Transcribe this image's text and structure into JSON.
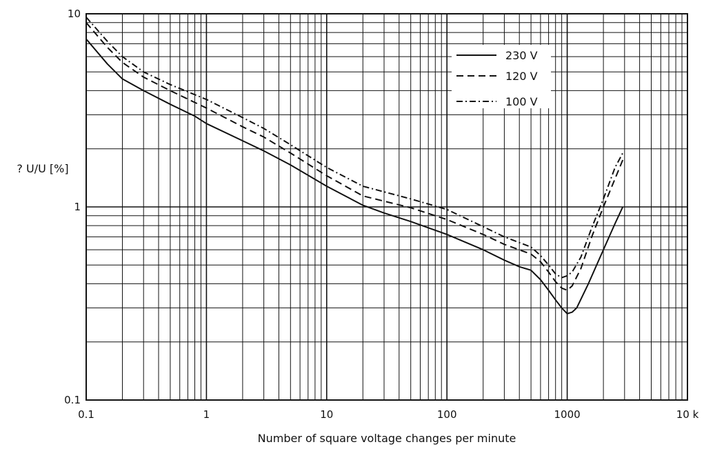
{
  "chart_data": {
    "type": "line",
    "title": "",
    "xlabel": "Number of square voltage changes per minute",
    "ylabel": "? U/U [%]",
    "x_scale": "log",
    "y_scale": "log",
    "xlim": [
      0.1,
      10000
    ],
    "ylim": [
      0.1,
      10
    ],
    "grid": true,
    "legend_position": "top-right",
    "x_ticks": [
      {
        "value": 0.1,
        "label": "0.1"
      },
      {
        "value": 1,
        "label": "1"
      },
      {
        "value": 10,
        "label": "10"
      },
      {
        "value": 100,
        "label": "100"
      },
      {
        "value": 1000,
        "label": "1000"
      },
      {
        "value": 10000,
        "label": "10 k"
      }
    ],
    "y_ticks": [
      {
        "value": 0.1,
        "label": "0.1"
      },
      {
        "value": 1,
        "label": "1"
      },
      {
        "value": 10,
        "label": "10"
      }
    ],
    "series": [
      {
        "name": "230 V",
        "dash": "solid",
        "x": [
          0.1,
          0.15,
          0.2,
          0.3,
          0.5,
          0.8,
          1,
          2,
          3,
          5,
          10,
          20,
          30,
          50,
          100,
          200,
          300,
          400,
          500,
          600,
          700,
          800,
          900,
          1000,
          1100,
          1200,
          1500,
          2000,
          2500,
          2900
        ],
        "y": [
          7.4,
          5.5,
          4.6,
          4.0,
          3.4,
          2.95,
          2.7,
          2.2,
          1.95,
          1.65,
          1.28,
          1.02,
          0.93,
          0.84,
          0.72,
          0.6,
          0.53,
          0.49,
          0.47,
          0.42,
          0.37,
          0.33,
          0.3,
          0.28,
          0.285,
          0.3,
          0.4,
          0.6,
          0.82,
          1.0
        ]
      },
      {
        "name": "120 V",
        "dash": "dashed",
        "x": [
          0.1,
          0.15,
          0.2,
          0.3,
          0.5,
          1,
          2,
          3,
          5,
          10,
          20,
          50,
          100,
          200,
          300,
          500,
          600,
          700,
          800,
          900,
          1000,
          1100,
          1300,
          1600,
          2000,
          2500,
          2900
        ],
        "y": [
          9.0,
          6.7,
          5.6,
          4.7,
          4.0,
          3.25,
          2.6,
          2.3,
          1.9,
          1.45,
          1.14,
          0.99,
          0.86,
          0.72,
          0.64,
          0.57,
          0.52,
          0.46,
          0.41,
          0.38,
          0.37,
          0.39,
          0.48,
          0.7,
          1.0,
          1.4,
          1.75
        ]
      },
      {
        "name": "100 V",
        "dash": "dashdot",
        "x": [
          0.1,
          0.15,
          0.2,
          0.3,
          0.5,
          1,
          2,
          3,
          5,
          10,
          20,
          50,
          100,
          200,
          300,
          500,
          600,
          700,
          800,
          900,
          1000,
          1100,
          1300,
          1600,
          2000,
          2500,
          2900
        ],
        "y": [
          9.6,
          7.2,
          6.0,
          5.0,
          4.3,
          3.6,
          2.9,
          2.55,
          2.1,
          1.6,
          1.28,
          1.1,
          0.97,
          0.79,
          0.7,
          0.62,
          0.56,
          0.5,
          0.45,
          0.43,
          0.44,
          0.46,
          0.55,
          0.78,
          1.1,
          1.6,
          1.9
        ]
      }
    ]
  }
}
